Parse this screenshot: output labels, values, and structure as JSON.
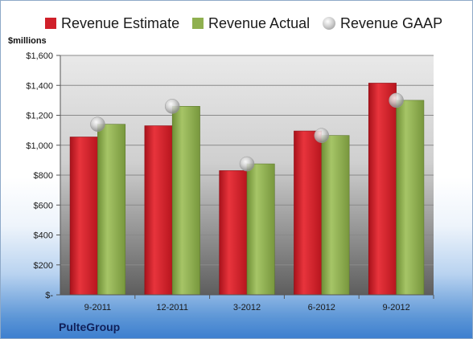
{
  "chart_data": {
    "type": "bar",
    "unit_label": "$millions",
    "categories": [
      "9-2011",
      "12-2011",
      "3-2012",
      "6-2012",
      "9-2012"
    ],
    "series": [
      {
        "name": "Revenue Estimate",
        "kind": "bar",
        "color": "#d0202a",
        "values": [
          1055,
          1130,
          830,
          1095,
          1415
        ]
      },
      {
        "name": "Revenue Actual",
        "kind": "bar",
        "color": "#8fb04f",
        "values": [
          1140,
          1260,
          875,
          1065,
          1300
        ]
      },
      {
        "name": "Revenue GAAP",
        "kind": "marker",
        "color": "#b8b8b8",
        "values": [
          1140,
          1260,
          875,
          1065,
          1300
        ]
      }
    ],
    "ylim": [
      0,
      1600
    ],
    "yticks": [
      0,
      200,
      400,
      600,
      800,
      1000,
      1200,
      1400,
      1600
    ],
    "ytick_labels": [
      "$-",
      "$200",
      "$400",
      "$600",
      "$800",
      "$1,000",
      "$1,200",
      "$1,400",
      "$1,600"
    ],
    "grid": true,
    "legend_position": "top"
  },
  "footer": {
    "company": "PulteGroup"
  }
}
